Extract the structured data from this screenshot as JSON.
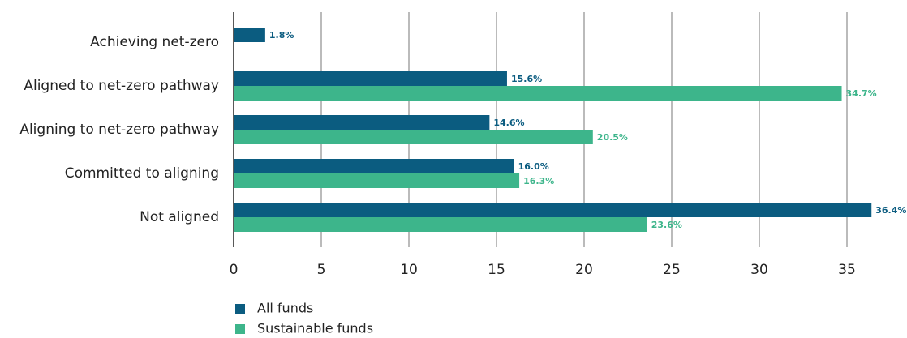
{
  "chart_data": {
    "type": "hbar",
    "categories": [
      "Achieving net-zero",
      "Aligned to net-zero pathway",
      "Aligning to net-zero pathway",
      "Committed to aligning",
      "Not aligned"
    ],
    "series": [
      {
        "name": "All funds",
        "color": "#0b5c80",
        "values": [
          1.8,
          15.6,
          14.6,
          16.0,
          36.4
        ],
        "value_labels": [
          "1.8%",
          "15.6%",
          "14.6%",
          "16.0%",
          "36.4%"
        ]
      },
      {
        "name": "Sustainable funds",
        "color": "#3db58b",
        "values": [
          null,
          34.7,
          20.5,
          16.3,
          23.6
        ],
        "value_labels": [
          null,
          "34.7%",
          "20.5%",
          "16.3%",
          "23.6%"
        ]
      }
    ],
    "xlim": [
      0,
      38
    ],
    "xticks": [
      0,
      5,
      10,
      15,
      20,
      25,
      30,
      35
    ],
    "grid": true,
    "legend": "bottom-left"
  }
}
